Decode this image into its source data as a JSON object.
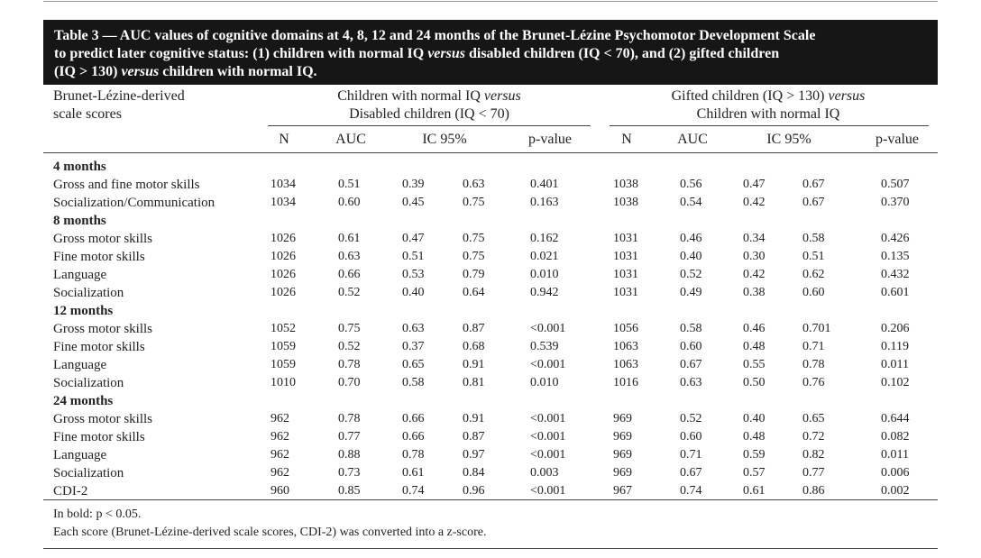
{
  "header": {
    "title": [
      [
        "Table 3 — AUC values of cognitive domains at 4, 8, 12 and 24 months of the Brunet-Lézine Psychomotor Development Scale"
      ],
      [
        "to predict later cognitive status: (1) children with normal IQ ",
        "versus",
        " disabled children (IQ < 70), and (2) gifted children"
      ],
      [
        "(IQ > 130) ",
        "versus",
        " children with normal IQ."
      ]
    ]
  },
  "table": {
    "row_header": [
      "Brunet-Lézine-derived",
      "scale scores"
    ],
    "groups": [
      [
        [
          "Children with normal IQ ",
          "versus"
        ],
        [
          "Disabled children (IQ < 70)"
        ]
      ],
      [
        [
          "Gifted children (IQ > 130) ",
          "versus"
        ],
        [
          "Children with normal IQ"
        ]
      ]
    ],
    "columns": [
      "N",
      "AUC",
      "IC 95%",
      "p-value",
      "N",
      "AUC",
      "IC 95%",
      "p-value"
    ],
    "sections": [
      {
        "title": "4 months",
        "rows": [
          {
            "label": "Gross and fine motor skills",
            "cells": [
              "1034",
              "0.51",
              "0.39",
              "0.63",
              "0.401",
              "1038",
              "0.56",
              "0.47",
              "0.67",
              "0.507"
            ]
          },
          {
            "label": "Socialization/Communication",
            "cells": [
              "1034",
              "0.60",
              "0.45",
              "0.75",
              "0.163",
              "1038",
              "0.54",
              "0.42",
              "0.67",
              "0.370"
            ]
          }
        ]
      },
      {
        "title": "8 months",
        "rows": [
          {
            "label": "Gross motor skills",
            "cells": [
              "1026",
              "0.61",
              "0.47",
              "0.75",
              "0.162",
              "1031",
              "0.46",
              "0.34",
              "0.58",
              "0.426"
            ]
          },
          {
            "label": "Fine motor skills",
            "cells": [
              "1026",
              "0.63",
              "0.51",
              "0.75",
              "0.021",
              "1031",
              "0.40",
              "0.30",
              "0.51",
              "0.135"
            ]
          },
          {
            "label": "Language",
            "cells": [
              "1026",
              "0.66",
              "0.53",
              "0.79",
              "0.010",
              "1031",
              "0.52",
              "0.42",
              "0.62",
              "0.432"
            ]
          },
          {
            "label": "Socialization",
            "cells": [
              "1026",
              "0.52",
              "0.40",
              "0.64",
              "0.942",
              "1031",
              "0.49",
              "0.38",
              "0.60",
              "0.601"
            ]
          }
        ]
      },
      {
        "title": "12 months",
        "rows": [
          {
            "label": "Gross motor skills",
            "cells": [
              "1052",
              "0.75",
              "0.63",
              "0.87",
              "<0.001",
              "1056",
              "0.58",
              "0.46",
              "0.701",
              "0.206"
            ]
          },
          {
            "label": "Fine motor skills",
            "cells": [
              "1059",
              "0.52",
              "0.37",
              "0.68",
              "0.539",
              "1063",
              "0.60",
              "0.48",
              "0.71",
              "0.119"
            ]
          },
          {
            "label": "Language",
            "cells": [
              "1059",
              "0.78",
              "0.65",
              "0.91",
              "<0.001",
              "1063",
              "0.67",
              "0.55",
              "0.78",
              "0.011"
            ]
          },
          {
            "label": "Socialization",
            "cells": [
              "1010",
              "0.70",
              "0.58",
              "0.81",
              "0.010",
              "1016",
              "0.63",
              "0.50",
              "0.76",
              "0.102"
            ]
          }
        ]
      },
      {
        "title": "24 months",
        "rows": [
          {
            "label": "Gross motor skills",
            "cells": [
              "962",
              "0.78",
              "0.66",
              "0.91",
              "<0.001",
              "969",
              "0.52",
              "0.40",
              "0.65",
              "0.644"
            ]
          },
          {
            "label": "Fine motor skills",
            "cells": [
              "962",
              "0.77",
              "0.66",
              "0.87",
              "<0.001",
              "969",
              "0.60",
              "0.48",
              "0.72",
              "0.082"
            ]
          },
          {
            "label": "Language",
            "cells": [
              "962",
              "0.88",
              "0.78",
              "0.97",
              "<0.001",
              "969",
              "0.71",
              "0.59",
              "0.82",
              "0.011"
            ]
          },
          {
            "label": "Socialization",
            "cells": [
              "962",
              "0.73",
              "0.61",
              "0.84",
              "0.003",
              "969",
              "0.67",
              "0.57",
              "0.77",
              "0.006"
            ]
          },
          {
            "label": "CDI-2",
            "cells": [
              "960",
              "0.85",
              "0.74",
              "0.96",
              "<0.001",
              "967",
              "0.74",
              "0.61",
              "0.86",
              "0.002"
            ]
          }
        ]
      }
    ]
  },
  "footnotes": [
    "In bold: p < 0.05.",
    "Each score (Brunet-Lézine-derived scale scores, CDI-2) was converted into a z-score."
  ]
}
